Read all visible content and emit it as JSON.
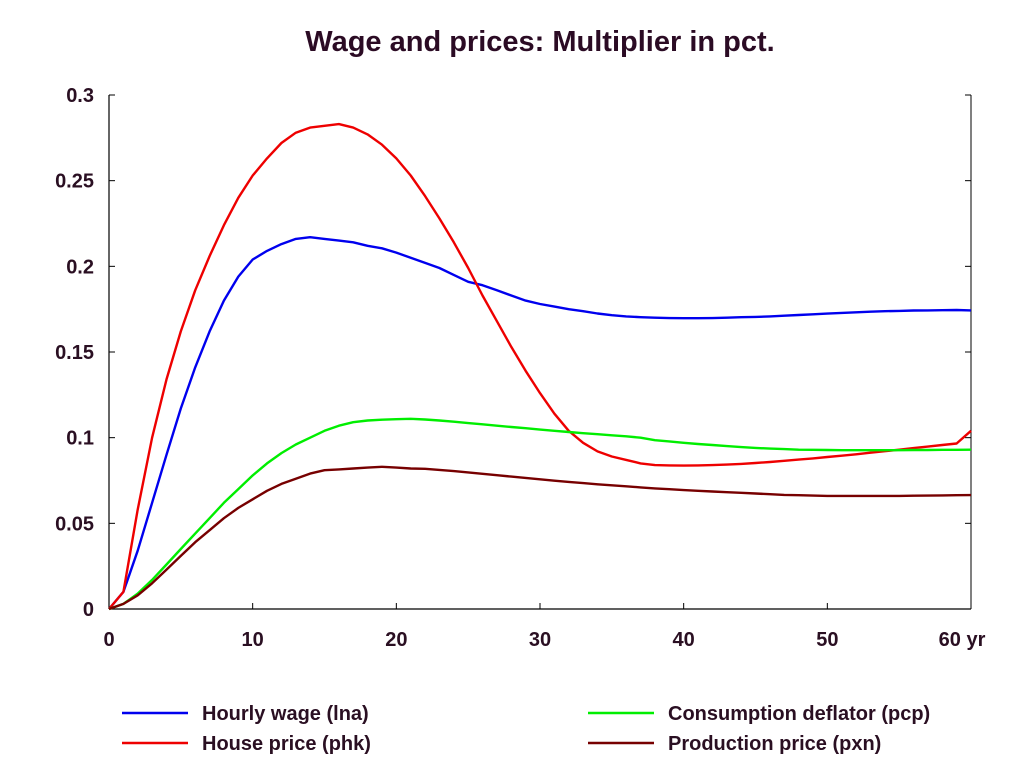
{
  "chart_data": {
    "type": "line",
    "title": "Wage and prices: Multiplier in pct.",
    "x_unit": "yr",
    "xlim": [
      0,
      60
    ],
    "ylim": [
      0,
      0.3
    ],
    "x_ticks": [
      0,
      10,
      20,
      30,
      40,
      50,
      60
    ],
    "x_tick_labels": [
      "0",
      "10",
      "20",
      "30",
      "40",
      "50",
      "60 yr"
    ],
    "y_ticks": [
      0,
      0.05,
      0.1,
      0.15,
      0.2,
      0.25,
      0.3
    ],
    "y_tick_labels": [
      "0",
      "0.05",
      "0.1",
      "0.15",
      "0.2",
      "0.25",
      "0.3"
    ],
    "grid": false,
    "legend_position": "bottom",
    "x": [
      0,
      1,
      2,
      3,
      4,
      5,
      6,
      7,
      8,
      9,
      10,
      11,
      12,
      13,
      14,
      15,
      16,
      17,
      18,
      19,
      20,
      21,
      22,
      23,
      24,
      25,
      26,
      27,
      28,
      29,
      30,
      31,
      32,
      33,
      34,
      35,
      36,
      37,
      38,
      39,
      40,
      41,
      42,
      43,
      44,
      45,
      46,
      47,
      48,
      49,
      50,
      51,
      52,
      53,
      54,
      55,
      56,
      57,
      58,
      59,
      60
    ],
    "series": [
      {
        "name": "Hourly wage (lna)",
        "color": "#0000ee",
        "values": [
          0,
          0.01,
          0.034,
          0.062,
          0.09,
          0.117,
          0.141,
          0.162,
          0.18,
          0.194,
          0.204,
          0.209,
          0.213,
          0.216,
          0.217,
          0.216,
          0.215,
          0.214,
          0.212,
          0.2105,
          0.208,
          0.205,
          0.202,
          0.199,
          0.195,
          0.191,
          0.189,
          0.186,
          0.183,
          0.18,
          0.178,
          0.1765,
          0.175,
          0.1738,
          0.1725,
          0.1715,
          0.1708,
          0.1703,
          0.17,
          0.1698,
          0.1697,
          0.1697,
          0.1698,
          0.17,
          0.1703,
          0.1705,
          0.1708,
          0.1712,
          0.1716,
          0.172,
          0.1724,
          0.1728,
          0.1732,
          0.1735,
          0.1738,
          0.174,
          0.1742,
          0.1743,
          0.1744,
          0.1745,
          0.1743
        ]
      },
      {
        "name": "House price (phk)",
        "color": "#ee0000",
        "values": [
          0,
          0.01,
          0.058,
          0.1,
          0.134,
          0.162,
          0.186,
          0.206,
          0.224,
          0.24,
          0.253,
          0.263,
          0.272,
          0.278,
          0.281,
          0.282,
          0.283,
          0.281,
          0.277,
          0.271,
          0.263,
          0.253,
          0.241,
          0.228,
          0.214,
          0.199,
          0.183,
          0.168,
          0.153,
          0.139,
          0.126,
          0.114,
          0.104,
          0.097,
          0.092,
          0.089,
          0.087,
          0.085,
          0.084,
          0.0838,
          0.0837,
          0.0838,
          0.084,
          0.0843,
          0.0847,
          0.0852,
          0.0858,
          0.0865,
          0.0872,
          0.0879,
          0.0887,
          0.0895,
          0.0903,
          0.0912,
          0.0921,
          0.093,
          0.0939,
          0.0948,
          0.0957,
          0.0966,
          0.104
        ]
      },
      {
        "name": "Consumption deflator (pcp)",
        "color": "#00ee00",
        "values": [
          0,
          0.003,
          0.009,
          0.017,
          0.026,
          0.035,
          0.044,
          0.053,
          0.062,
          0.07,
          0.078,
          0.085,
          0.091,
          0.096,
          0.1,
          0.104,
          0.107,
          0.109,
          0.11,
          0.1105,
          0.1108,
          0.111,
          0.1106,
          0.11,
          0.1093,
          0.1085,
          0.1078,
          0.107,
          0.1062,
          0.1055,
          0.1047,
          0.104,
          0.1033,
          0.1026,
          0.102,
          0.1014,
          0.1008,
          0.1,
          0.0985,
          0.0978,
          0.097,
          0.0963,
          0.0957,
          0.0951,
          0.0945,
          0.094,
          0.0936,
          0.0933,
          0.093,
          0.0929,
          0.0928,
          0.0927,
          0.0927,
          0.0927,
          0.0927,
          0.0927,
          0.0928,
          0.0928,
          0.0929,
          0.0929,
          0.093
        ]
      },
      {
        "name": "Production price (pxn)",
        "color": "#770000",
        "values": [
          0,
          0.003,
          0.008,
          0.015,
          0.023,
          0.031,
          0.039,
          0.046,
          0.053,
          0.059,
          0.064,
          0.069,
          0.073,
          0.076,
          0.079,
          0.081,
          0.0815,
          0.082,
          0.0825,
          0.083,
          0.0825,
          0.082,
          0.0818,
          0.0812,
          0.0805,
          0.0797,
          0.0789,
          0.0781,
          0.0773,
          0.0765,
          0.0757,
          0.0749,
          0.0742,
          0.0735,
          0.0728,
          0.0722,
          0.0716,
          0.071,
          0.0704,
          0.0699,
          0.0694,
          0.069,
          0.0686,
          0.0682,
          0.0678,
          0.0674,
          0.067,
          0.0666,
          0.0664,
          0.0662,
          0.066,
          0.066,
          0.066,
          0.066,
          0.066,
          0.066,
          0.0661,
          0.0662,
          0.0663,
          0.0664,
          0.0665
        ]
      }
    ]
  }
}
